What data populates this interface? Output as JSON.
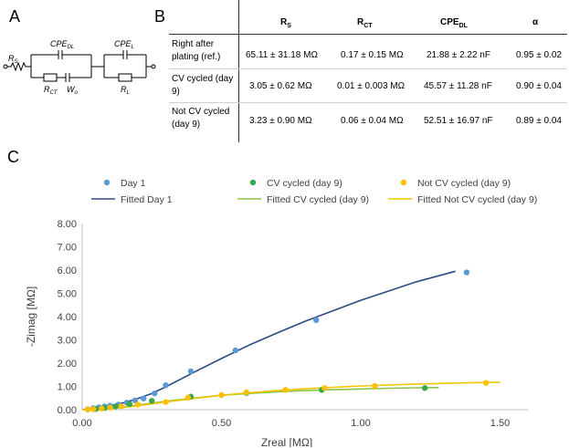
{
  "panel_labels": {
    "a": "A",
    "b": "B",
    "c": "C"
  },
  "circuit": {
    "rs": "R",
    "rs_sub": "S",
    "cpe_dl": "CPE",
    "cpe_dl_sub": "DL",
    "rct": "R",
    "rct_sub": "CT",
    "wo": "W",
    "wo_sub": "o",
    "cpe_l": "CPE",
    "cpe_l_sub": "L",
    "rl": "R",
    "rl_sub": "L"
  },
  "table": {
    "headers": [
      {
        "main": "R",
        "sub": "S"
      },
      {
        "main": "R",
        "sub": "CT"
      },
      {
        "main": "CPE",
        "sub": "DL"
      },
      {
        "main": "α",
        "sub": ""
      }
    ],
    "rows": [
      {
        "label": "Right after plating (ref.)",
        "rs": "65.11 ± 31.18  MΩ",
        "rct": "0.17 ± 0.15  MΩ",
        "cpe": "21.88 ± 2.22  nF",
        "alpha": "0.95 ± 0.02"
      },
      {
        "label": "CV cycled (day 9)",
        "rs": "3.05 ± 0.62  MΩ",
        "rct": "0.01 ± 0.003  MΩ",
        "cpe": "45.57 ± 11.28  nF",
        "alpha": "0.90 ± 0.04"
      },
      {
        "label": "Not CV cycled (day 9)",
        "rs": "3.23 ± 0.90  MΩ",
        "rct": "0.06 ± 0.04  MΩ",
        "cpe": "52.51 ± 16.97  nF",
        "alpha": "0.89 ± 0.04"
      }
    ]
  },
  "chart_data": {
    "type": "scatter",
    "xlabel": "Zreal [MΩ]",
    "ylabel": "-Zimag [MΩ]",
    "xlim": [
      0,
      1.6
    ],
    "ylim": [
      0,
      8
    ],
    "xticks": [
      "0.00",
      "0.50",
      "1.00",
      "1.50"
    ],
    "yticks": [
      "0.00",
      "1.00",
      "2.00",
      "3.00",
      "4.00",
      "5.00",
      "6.00",
      "7.00",
      "8.00"
    ],
    "legend_placement": "top",
    "series": [
      {
        "name": "Day 1",
        "kind": "points",
        "color": "#5b9bd5",
        "x": [
          0.02,
          0.04,
          0.06,
          0.08,
          0.1,
          0.13,
          0.16,
          0.19,
          0.22,
          0.26,
          0.3,
          0.39,
          0.55,
          0.84,
          1.38
        ],
        "y": [
          0.02,
          0.06,
          0.1,
          0.14,
          0.17,
          0.22,
          0.3,
          0.4,
          0.48,
          0.7,
          1.05,
          1.65,
          2.55,
          3.85,
          5.9
        ]
      },
      {
        "name": "CV cycled (day 9)",
        "kind": "points",
        "color": "#3aa84a",
        "x": [
          0.02,
          0.05,
          0.08,
          0.12,
          0.17,
          0.25,
          0.39,
          0.59,
          0.86,
          1.23
        ],
        "y": [
          0.01,
          0.03,
          0.07,
          0.14,
          0.24,
          0.38,
          0.56,
          0.72,
          0.85,
          0.93
        ]
      },
      {
        "name": "Not CV cycled (day 9)",
        "kind": "points",
        "color": "#ffc000",
        "x": [
          0.02,
          0.04,
          0.07,
          0.1,
          0.14,
          0.2,
          0.3,
          0.38,
          0.5,
          0.59,
          0.73,
          0.87,
          1.05,
          1.45
        ],
        "y": [
          0.01,
          0.02,
          0.05,
          0.09,
          0.15,
          0.22,
          0.33,
          0.52,
          0.63,
          0.75,
          0.85,
          0.93,
          1.02,
          1.15
        ]
      },
      {
        "name": "Fitted Day 1",
        "kind": "line",
        "color": "#2f4b85",
        "x": [
          0.0,
          0.05,
          0.1,
          0.15,
          0.2,
          0.25,
          0.3,
          0.4,
          0.5,
          0.6,
          0.7,
          0.8,
          0.9,
          1.0,
          1.1,
          1.2,
          1.34
        ],
        "y": [
          0.0,
          0.08,
          0.18,
          0.3,
          0.48,
          0.7,
          0.98,
          1.6,
          2.2,
          2.78,
          3.3,
          3.8,
          4.25,
          4.7,
          5.1,
          5.5,
          5.95
        ]
      },
      {
        "name": "Fitted CV cycled (day 9)",
        "kind": "line",
        "color": "#8bc34a",
        "x": [
          0.0,
          0.05,
          0.1,
          0.15,
          0.2,
          0.3,
          0.4,
          0.5,
          0.6,
          0.7,
          0.8,
          0.9,
          1.0,
          1.1,
          1.2,
          1.28
        ],
        "y": [
          0.0,
          0.02,
          0.06,
          0.12,
          0.2,
          0.36,
          0.5,
          0.62,
          0.7,
          0.77,
          0.82,
          0.86,
          0.89,
          0.92,
          0.94,
          0.95
        ]
      },
      {
        "name": "Fitted Not CV cycled (day 9)",
        "kind": "line",
        "color": "#f5c400",
        "x": [
          0.0,
          0.05,
          0.1,
          0.15,
          0.2,
          0.3,
          0.4,
          0.5,
          0.6,
          0.7,
          0.8,
          0.9,
          1.0,
          1.1,
          1.2,
          1.3,
          1.4,
          1.5
        ],
        "y": [
          0.0,
          0.02,
          0.05,
          0.1,
          0.17,
          0.33,
          0.48,
          0.62,
          0.73,
          0.82,
          0.9,
          0.96,
          1.02,
          1.06,
          1.1,
          1.13,
          1.16,
          1.18
        ]
      }
    ]
  }
}
